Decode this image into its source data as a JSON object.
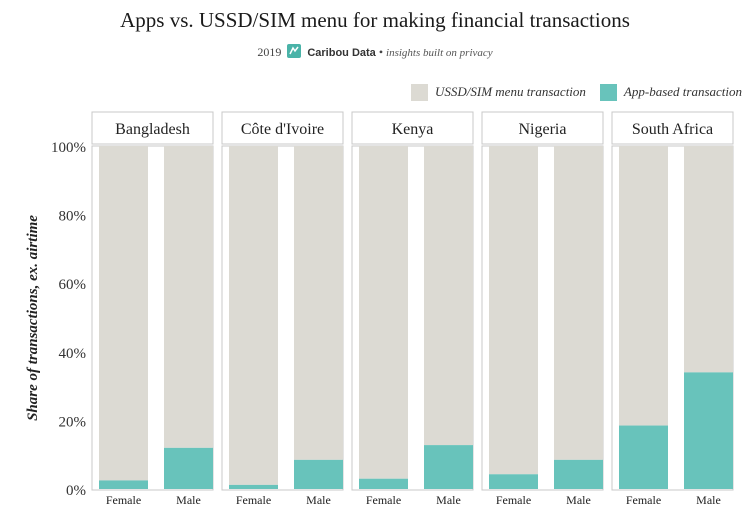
{
  "title": "Apps vs. USSD/SIM menu for making financial transactions",
  "subtitle": {
    "year": "2019",
    "brand": "Caribou Data",
    "separator": "•",
    "tagline": "insights built on privacy"
  },
  "colors": {
    "ussd": "#dcdad3",
    "app": "#68c3bb",
    "strip": "#ffffff",
    "border": "#c8c8c8",
    "logo": "#4ab3a8"
  },
  "legend": {
    "ussd": "USSD/SIM menu transaction",
    "app": "App-based transaction"
  },
  "chart_data": {
    "type": "bar",
    "stacked": true,
    "title": "Apps vs. USSD/SIM menu for making financial transactions",
    "ylabel": "Share of transactions, ex. airtime",
    "ylim": [
      0,
      100
    ],
    "yticks": [
      "100%",
      "80%",
      "60%",
      "40%",
      "20%",
      "0%"
    ],
    "ytick_values": [
      100,
      80,
      60,
      40,
      20,
      0
    ],
    "facets": [
      "Bangladesh",
      "Côte d'Ivoire",
      "Kenya",
      "Nigeria",
      "South Africa"
    ],
    "categories": [
      "Female",
      "Male"
    ],
    "series": [
      {
        "name": "App-based transaction",
        "values": [
          [
            2.5,
            12
          ],
          [
            1.2,
            8.5
          ],
          [
            3,
            12.8
          ],
          [
            4.3,
            8.5
          ],
          [
            18.5,
            34
          ]
        ]
      },
      {
        "name": "USSD/SIM menu transaction",
        "values": [
          [
            97.5,
            88
          ],
          [
            98.8,
            91.5
          ],
          [
            97,
            87.2
          ],
          [
            95.7,
            91.5
          ],
          [
            81.5,
            66
          ]
        ]
      }
    ],
    "legend_position": "top-right",
    "grid": false
  }
}
